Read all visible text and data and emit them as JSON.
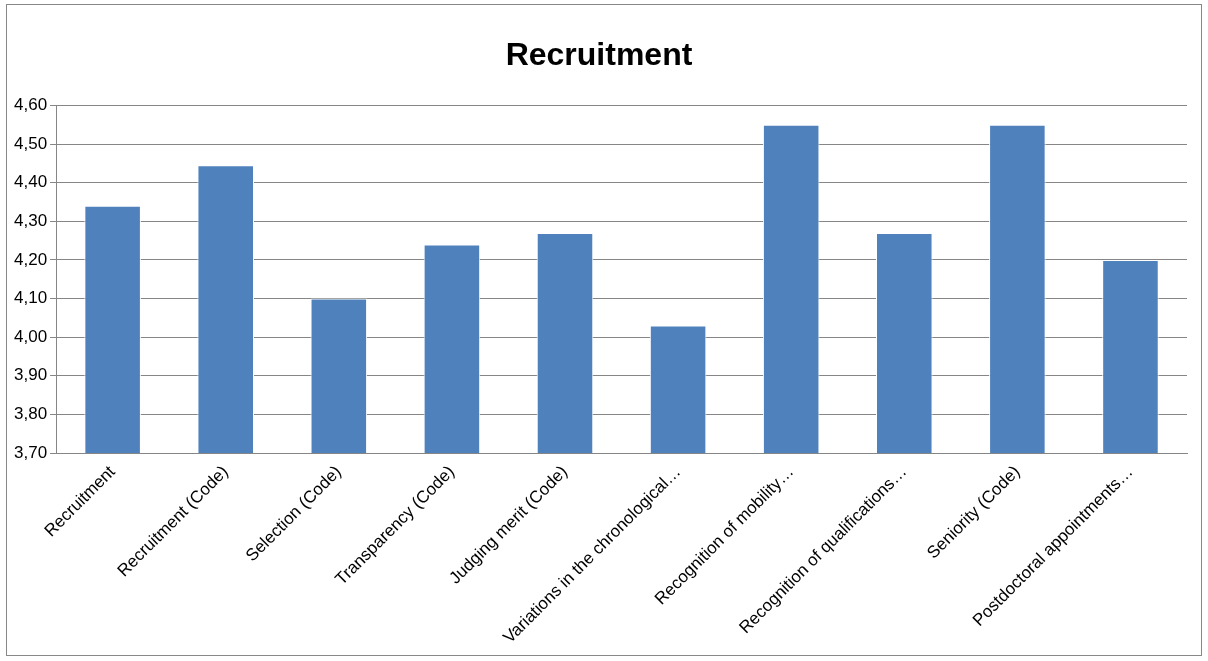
{
  "chart_data": {
    "type": "bar",
    "title": "Recruitment",
    "categories": [
      "Recruitment",
      "Recruitment (Code)",
      "Selection (Code)",
      "Transparency (Code)",
      "Judging merit (Code)",
      "Variations in the chronological…",
      "Recognition of mobility…",
      "Recognition of qualifications…",
      "Seniority (Code)",
      "Postdoctoral appointments…"
    ],
    "values": [
      4.34,
      4.445,
      4.1,
      4.24,
      4.27,
      4.03,
      4.55,
      4.27,
      4.55,
      4.2
    ],
    "color": "#4f81bd",
    "ylim": [
      3.7,
      4.6
    ],
    "yticks": [
      {
        "value": 3.7,
        "label": "3,70"
      },
      {
        "value": 3.8,
        "label": "3,80"
      },
      {
        "value": 3.9,
        "label": "3,90"
      },
      {
        "value": 4.0,
        "label": "4,00"
      },
      {
        "value": 4.1,
        "label": "4,10"
      },
      {
        "value": 4.2,
        "label": "4,20"
      },
      {
        "value": 4.3,
        "label": "4,30"
      },
      {
        "value": 4.4,
        "label": "4,40"
      },
      {
        "value": 4.5,
        "label": "4,50"
      },
      {
        "value": 4.6,
        "label": "4,60"
      }
    ],
    "grid": "y",
    "legend": false
  }
}
